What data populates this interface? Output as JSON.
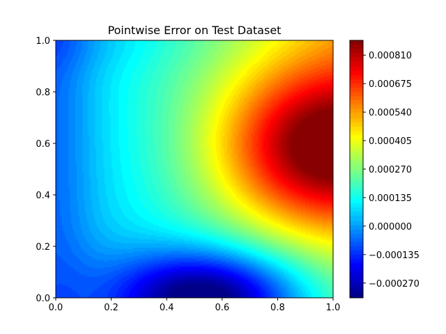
{
  "chart_data": {
    "type": "heatmap",
    "title": "Pointwise Error on Test Dataset",
    "xlabel": "",
    "ylabel": "",
    "xlim": [
      0.0,
      1.0
    ],
    "ylim": [
      0.0,
      1.0
    ],
    "x_ticks": [
      "0.0",
      "0.2",
      "0.4",
      "0.6",
      "0.8",
      "1.0"
    ],
    "y_ticks": [
      "0.0",
      "0.2",
      "0.4",
      "0.6",
      "0.8",
      "1.0"
    ],
    "x_tick_values": [
      0.0,
      0.2,
      0.4,
      0.6,
      0.8,
      1.0
    ],
    "y_tick_values": [
      0.0,
      0.2,
      0.4,
      0.6,
      0.8,
      1.0
    ],
    "colormap": "jet",
    "color_range": [
      -0.00034,
      0.00088
    ],
    "colorbar_ticks": [
      "0.000810",
      "0.000675",
      "0.000540",
      "0.000405",
      "0.000270",
      "0.000135",
      "0.000000",
      "−0.000135",
      "−0.000270"
    ],
    "colorbar_tick_values": [
      0.00081,
      0.000675,
      0.00054,
      0.000405,
      0.00027,
      0.000135,
      0.0,
      -0.000135,
      -0.00027
    ],
    "grid": false,
    "field_features": [
      {
        "kind": "maximum",
        "x": 0.97,
        "y": 0.58,
        "value": 0.00088
      },
      {
        "kind": "minimum",
        "x": 0.55,
        "y": 0.0,
        "value": -0.00034
      }
    ]
  }
}
